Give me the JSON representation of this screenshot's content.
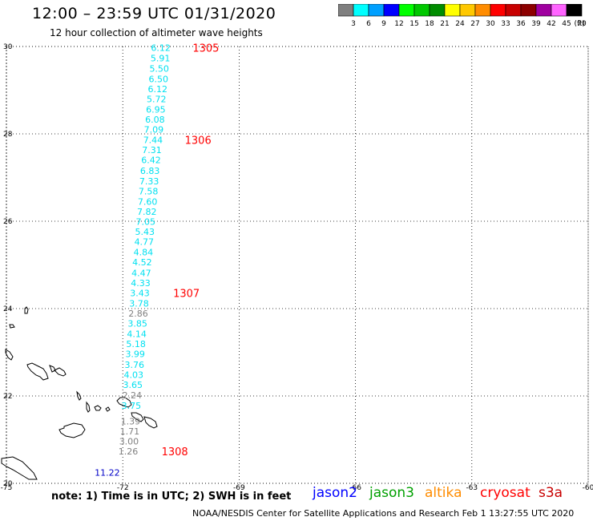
{
  "header": {
    "title": "12:00 – 23:59 UTC 01/31/2020",
    "subtitle": "12 hour collection of altimeter wave heights"
  },
  "legend": {
    "unit": "(ft)",
    "bins": [
      {
        "label": "3",
        "color": "#7f7f7f"
      },
      {
        "label": "6",
        "color": "#00ffff"
      },
      {
        "label": "9",
        "color": "#00a0ff"
      },
      {
        "label": "12",
        "color": "#0000ff"
      },
      {
        "label": "15",
        "color": "#00ff00"
      },
      {
        "label": "18",
        "color": "#00c800"
      },
      {
        "label": "21",
        "color": "#008c00"
      },
      {
        "label": "24",
        "color": "#ffff00"
      },
      {
        "label": "27",
        "color": "#ffc800"
      },
      {
        "label": "30",
        "color": "#ff8c00"
      },
      {
        "label": "33",
        "color": "#ff0000"
      },
      {
        "label": "36",
        "color": "#c80000"
      },
      {
        "label": "39",
        "color": "#8c0000"
      },
      {
        "label": "42",
        "color": "#a000a0"
      },
      {
        "label": "45",
        "color": "#ff64ff"
      },
      {
        "label": "70",
        "color": "#000000"
      }
    ]
  },
  "map": {
    "lon_ticks": [
      "-75",
      "-72",
      "-69",
      "-66",
      "-63",
      "-60"
    ],
    "lat_ticks": [
      "30",
      "28",
      "26",
      "24",
      "22",
      "20"
    ],
    "lon_range": [
      -75,
      -60
    ],
    "lat_range": [
      20,
      30
    ]
  },
  "track": {
    "cyan_color": "#00e0f0",
    "gray_color": "#808080",
    "points": [
      {
        "lat": 29.97,
        "lon": -71.02,
        "value": "6.12",
        "color": "cyan"
      },
      {
        "lat": 29.73,
        "lon": -71.03,
        "value": "5.91",
        "color": "cyan"
      },
      {
        "lat": 29.5,
        "lon": -71.06,
        "value": "5.50",
        "color": "cyan"
      },
      {
        "lat": 29.26,
        "lon": -71.08,
        "value": "6.50",
        "color": "cyan"
      },
      {
        "lat": 29.03,
        "lon": -71.1,
        "value": "6.12",
        "color": "cyan"
      },
      {
        "lat": 28.8,
        "lon": -71.13,
        "value": "5.72",
        "color": "cyan"
      },
      {
        "lat": 28.56,
        "lon": -71.15,
        "value": "6.95",
        "color": "cyan"
      },
      {
        "lat": 28.33,
        "lon": -71.17,
        "value": "6.08",
        "color": "cyan"
      },
      {
        "lat": 28.1,
        "lon": -71.2,
        "value": "7.09",
        "color": "cyan"
      },
      {
        "lat": 27.86,
        "lon": -71.22,
        "value": "7.44",
        "color": "cyan"
      },
      {
        "lat": 27.63,
        "lon": -71.25,
        "value": "7.31",
        "color": "cyan"
      },
      {
        "lat": 27.4,
        "lon": -71.27,
        "value": "6.42",
        "color": "cyan"
      },
      {
        "lat": 27.16,
        "lon": -71.3,
        "value": "6.83",
        "color": "cyan"
      },
      {
        "lat": 26.92,
        "lon": -71.32,
        "value": "7.33",
        "color": "cyan"
      },
      {
        "lat": 26.69,
        "lon": -71.34,
        "value": "7.58",
        "color": "cyan"
      },
      {
        "lat": 26.45,
        "lon": -71.36,
        "value": "7.60",
        "color": "cyan"
      },
      {
        "lat": 26.22,
        "lon": -71.38,
        "value": "7.82",
        "color": "cyan"
      },
      {
        "lat": 25.99,
        "lon": -71.41,
        "value": "7.05",
        "color": "cyan"
      },
      {
        "lat": 25.76,
        "lon": -71.43,
        "value": "5.43",
        "color": "cyan"
      },
      {
        "lat": 25.53,
        "lon": -71.45,
        "value": "4.77",
        "color": "cyan"
      },
      {
        "lat": 25.29,
        "lon": -71.47,
        "value": "4.84",
        "color": "cyan"
      },
      {
        "lat": 25.06,
        "lon": -71.5,
        "value": "4.52",
        "color": "cyan"
      },
      {
        "lat": 24.82,
        "lon": -71.52,
        "value": "4.47",
        "color": "cyan"
      },
      {
        "lat": 24.59,
        "lon": -71.54,
        "value": "4.33",
        "color": "cyan"
      },
      {
        "lat": 24.36,
        "lon": -71.56,
        "value": "3.43",
        "color": "cyan"
      },
      {
        "lat": 24.12,
        "lon": -71.58,
        "value": "3.78",
        "color": "cyan"
      },
      {
        "lat": 23.89,
        "lon": -71.6,
        "value": "2.86",
        "color": "gray"
      },
      {
        "lat": 23.66,
        "lon": -71.62,
        "value": "3.85",
        "color": "cyan"
      },
      {
        "lat": 23.42,
        "lon": -71.64,
        "value": "4.14",
        "color": "cyan"
      },
      {
        "lat": 23.19,
        "lon": -71.66,
        "value": "5.18",
        "color": "cyan"
      },
      {
        "lat": 22.96,
        "lon": -71.68,
        "value": "3.99",
        "color": "cyan"
      },
      {
        "lat": 22.72,
        "lon": -71.7,
        "value": "3.76",
        "color": "cyan"
      },
      {
        "lat": 22.49,
        "lon": -71.72,
        "value": "4.03",
        "color": "cyan"
      },
      {
        "lat": 22.26,
        "lon": -71.74,
        "value": "3.65",
        "color": "cyan"
      },
      {
        "lat": 22.02,
        "lon": -71.76,
        "value": "2.24",
        "color": "gray"
      },
      {
        "lat": 21.78,
        "lon": -71.78,
        "value": "3.75",
        "color": "cyan"
      },
      {
        "lat": 21.42,
        "lon": -71.8,
        "value": "1.39",
        "color": "gray"
      },
      {
        "lat": 21.19,
        "lon": -71.82,
        "value": "1.71",
        "color": "gray"
      },
      {
        "lat": 20.96,
        "lon": -71.84,
        "value": "3.00",
        "color": "gray"
      },
      {
        "lat": 20.73,
        "lon": -71.86,
        "value": "1.26",
        "color": "gray"
      }
    ],
    "time_labels": [
      {
        "lat": 29.97,
        "lon": -70.2,
        "text": "1305"
      },
      {
        "lat": 27.86,
        "lon": -70.4,
        "text": "1306"
      },
      {
        "lat": 24.36,
        "lon": -70.7,
        "text": "1307"
      },
      {
        "lat": 20.73,
        "lon": -71.0,
        "text": "1308"
      }
    ],
    "time_color": "#ff0000",
    "extra_points": [
      {
        "lat": 20.25,
        "lon": -72.4,
        "value": "11.22",
        "color": "#0000c8"
      }
    ]
  },
  "footer": {
    "note": "note: 1) Time is in UTC; 2) SWH is in feet",
    "satellites": [
      {
        "name": "jason2",
        "color": "#0000ff"
      },
      {
        "name": "jason3",
        "color": "#00a000"
      },
      {
        "name": "altika",
        "color": "#ff8c00"
      },
      {
        "name": "cryosat",
        "color": "#ff0000"
      },
      {
        "name": "s3a",
        "color": "#c80000"
      }
    ],
    "credit": "NOAA/NESDIS Center for Satellite Applications and Research   Feb  1 13:27:55 UTC 2020"
  }
}
